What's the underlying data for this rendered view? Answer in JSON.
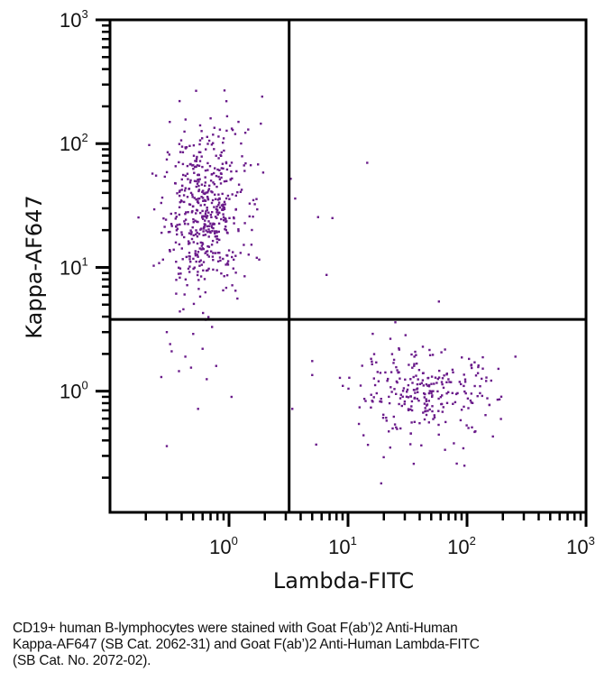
{
  "chart_data": {
    "type": "scatter",
    "subtype": "flow-cytometry-quadrant-dot-plot",
    "xlabel": "Lambda-FITC",
    "ylabel": "Kappa-AF647",
    "xscale": "log",
    "yscale": "log",
    "xlim": [
      0.1,
      1000
    ],
    "ylim": [
      0.105,
      1000
    ],
    "x_ticks": [
      {
        "value": 1,
        "base": "10",
        "exp": "0"
      },
      {
        "value": 10,
        "base": "10",
        "exp": "1"
      },
      {
        "value": 100,
        "base": "10",
        "exp": "2"
      },
      {
        "value": 1000,
        "base": "10",
        "exp": "3"
      }
    ],
    "y_ticks": [
      {
        "value": 1,
        "base": "10",
        "exp": "0"
      },
      {
        "value": 10,
        "base": "10",
        "exp": "1"
      },
      {
        "value": 100,
        "base": "10",
        "exp": "2"
      },
      {
        "value": 1000,
        "base": "10",
        "exp": "3"
      }
    ],
    "quadrant_gates": {
      "x": 3.2,
      "y": 3.8
    },
    "point_color": "#6a1b8a",
    "grid": false,
    "legend": "none",
    "populations": [
      {
        "name": "Kappa+ Lambda- (upper-left)",
        "count": 520,
        "x_center": 0.62,
        "x_log_sd": 0.17,
        "y_center": 28,
        "y_log_sd": 0.33
      },
      {
        "name": "Lambda+ Kappa- (lower-right)",
        "count": 270,
        "x_center": 45,
        "x_log_sd": 0.3,
        "y_center": 0.95,
        "y_log_sd": 0.17
      }
    ],
    "outliers": [
      [
        0.3,
        0.36
      ],
      [
        0.55,
        0.72
      ],
      [
        1.05,
        0.9
      ],
      [
        0.27,
        1.3
      ],
      [
        0.38,
        1.45
      ],
      [
        0.43,
        1.9
      ],
      [
        0.32,
        2.4
      ],
      [
        0.6,
        2.2
      ],
      [
        0.78,
        1.6
      ],
      [
        0.3,
        3.0
      ],
      [
        0.5,
        2.9
      ],
      [
        0.72,
        3.3
      ],
      [
        0.65,
        1.25
      ],
      [
        0.48,
        1.55
      ],
      [
        0.33,
        2.1
      ],
      [
        1.9,
        240
      ],
      [
        1.85,
        145
      ],
      [
        0.95,
        220
      ],
      [
        0.7,
        160
      ],
      [
        1.45,
        130
      ],
      [
        1.2,
        150
      ],
      [
        3.3,
        52
      ],
      [
        3.6,
        36
      ],
      [
        5.6,
        25.5
      ],
      [
        7.4,
        25
      ],
      [
        6.6,
        8.7
      ],
      [
        14.5,
        70
      ],
      [
        58,
        5.3
      ],
      [
        5.0,
        1.75
      ],
      [
        5.0,
        1.35
      ],
      [
        3.4,
        0.72
      ],
      [
        5.4,
        0.37
      ],
      [
        13.5,
        0.44
      ],
      [
        19,
        0.18
      ],
      [
        95,
        0.25
      ],
      [
        82,
        0.26
      ],
      [
        255,
        1.9
      ],
      [
        25,
        3.6
      ]
    ]
  },
  "caption": {
    "lines": [
      "CD19+ human B-lymphocytes were stained with Goat F(ab’)2 Anti-Human",
      "Kappa-AF647 (SB Cat. 2062-31) and Goat F(ab’)2 Anti-Human Lambda-FITC",
      "(SB Cat. No. 2072-02)."
    ]
  }
}
